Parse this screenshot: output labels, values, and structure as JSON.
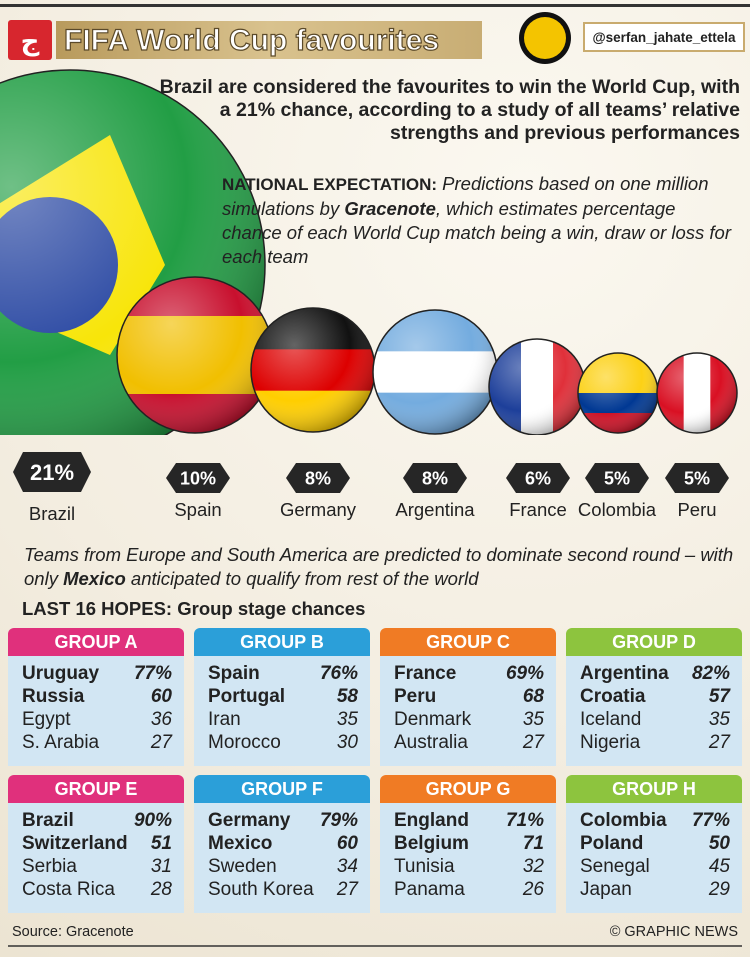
{
  "header": {
    "title": "FIFA World Cup favourites",
    "handle": "@serfan_jahate_ettela"
  },
  "intro": "Brazil are considered the favourites to win the World Cup, with a 21% chance, according to a study of all teams’ relative strengths and previous performances",
  "note": {
    "heading": "NATIONAL EXPECTATION:",
    "text_before": " Predictions based on one million simulations by ",
    "emphasis": "Gracenote",
    "text_after": ", which estimates percentage chance of each World Cup match being a win, draw or loss for each team"
  },
  "favourites": [
    {
      "team": "Brazil",
      "chance": "21%"
    },
    {
      "team": "Spain",
      "chance": "10%"
    },
    {
      "team": "Germany",
      "chance": "8%"
    },
    {
      "team": "Argentina",
      "chance": "8%"
    },
    {
      "team": "France",
      "chance": "6%"
    },
    {
      "team": "Colombia",
      "chance": "5%"
    },
    {
      "team": "Peru",
      "chance": "5%"
    }
  ],
  "second_round": {
    "text_before": "Teams from Europe and South America are predicted to dominate second round – with only ",
    "emphasis": "Mexico",
    "text_after": " anticipated to qualify from rest of the world"
  },
  "groups_heading": {
    "label": "LAST 16 HOPES:",
    "text": " Group stage chances"
  },
  "groups": [
    {
      "name": "GROUP A",
      "color": "#e0307c",
      "teams": [
        {
          "team": "Uruguay",
          "chance": "77%"
        },
        {
          "team": "Russia",
          "chance": "60"
        },
        {
          "team": "Egypt",
          "chance": "36"
        },
        {
          "team": "S. Arabia",
          "chance": "27"
        }
      ]
    },
    {
      "name": "GROUP B",
      "color": "#2b9fd9",
      "teams": [
        {
          "team": "Spain",
          "chance": "76%"
        },
        {
          "team": "Portugal",
          "chance": "58"
        },
        {
          "team": "Iran",
          "chance": "35"
        },
        {
          "team": "Morocco",
          "chance": "30"
        }
      ]
    },
    {
      "name": "GROUP C",
      "color": "#f07b24",
      "teams": [
        {
          "team": "France",
          "chance": "69%"
        },
        {
          "team": "Peru",
          "chance": "68"
        },
        {
          "team": "Denmark",
          "chance": "35"
        },
        {
          "team": "Australia",
          "chance": "27"
        }
      ]
    },
    {
      "name": "GROUP D",
      "color": "#8dc43e",
      "teams": [
        {
          "team": "Argentina",
          "chance": "82%"
        },
        {
          "team": "Croatia",
          "chance": "57"
        },
        {
          "team": "Iceland",
          "chance": "35"
        },
        {
          "team": "Nigeria",
          "chance": "27"
        }
      ]
    },
    {
      "name": "GROUP E",
      "color": "#e0307c",
      "teams": [
        {
          "team": "Brazil",
          "chance": "90%"
        },
        {
          "team": "Switzerland",
          "chance": "51"
        },
        {
          "team": "Serbia",
          "chance": "31"
        },
        {
          "team": "Costa Rica",
          "chance": "28"
        }
      ]
    },
    {
      "name": "GROUP F",
      "color": "#2b9fd9",
      "teams": [
        {
          "team": "Germany",
          "chance": "79%"
        },
        {
          "team": "Mexico",
          "chance": "60"
        },
        {
          "team": "Sweden",
          "chance": "34"
        },
        {
          "team": "South Korea",
          "chance": "27"
        }
      ]
    },
    {
      "name": "GROUP G",
      "color": "#f07b24",
      "teams": [
        {
          "team": "England",
          "chance": "71%"
        },
        {
          "team": "Belgium",
          "chance": "71"
        },
        {
          "team": "Tunisia",
          "chance": "32"
        },
        {
          "team": "Panama",
          "chance": "26"
        }
      ]
    },
    {
      "name": "GROUP H",
      "color": "#8dc43e",
      "teams": [
        {
          "team": "Colombia",
          "chance": "77%"
        },
        {
          "team": "Poland",
          "chance": "50"
        },
        {
          "team": "Senegal",
          "chance": "45"
        },
        {
          "team": "Japan",
          "chance": "29"
        }
      ]
    }
  ],
  "footer": {
    "source": "Source: Gracenote",
    "credit": "© GRAPHIC NEWS"
  }
}
